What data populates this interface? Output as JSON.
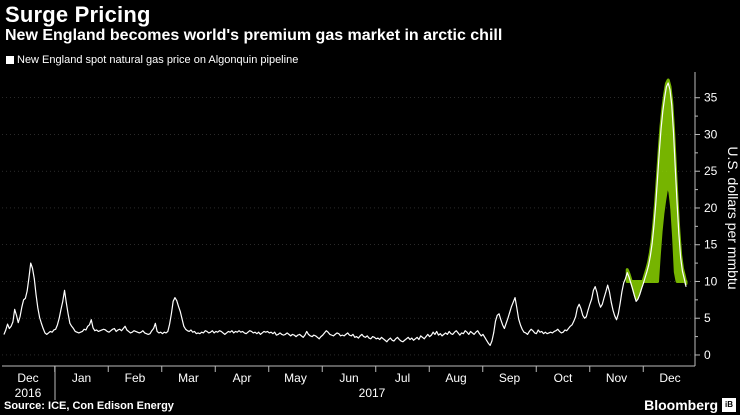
{
  "header": {
    "title": "Surge Pricing",
    "subtitle": "New England becomes world's premium gas market in arctic chill"
  },
  "legend": {
    "label": "New England spot natural gas price on Algonquin pipeline"
  },
  "footer": {
    "source": "Source: ICE, Con Edison Energy",
    "brand": "Bloomberg",
    "brand_mark": "iB"
  },
  "colors": {
    "background": "#000000",
    "line": "#ffffff",
    "highlight": "#8bd400",
    "grid": "#444444"
  },
  "chart_data": {
    "type": "line",
    "ylabel": "U.S. dollars per mmbtu",
    "ylim": [
      -1.5,
      38.5
    ],
    "yticks": [
      0,
      5,
      10,
      15,
      20,
      25,
      30,
      35
    ],
    "x_month_labels": [
      "Dec",
      "Jan",
      "Feb",
      "Mar",
      "Apr",
      "May",
      "Jun",
      "Jul",
      "Aug",
      "Sep",
      "Oct",
      "Nov",
      "Dec"
    ],
    "x_year_labels": [
      {
        "label": "2016",
        "month_index": 0
      },
      {
        "label": "2017",
        "month_index": 6
      }
    ],
    "series": [
      {
        "values": [
          2.8,
          3.4,
          4.2,
          3.6,
          3.9,
          4.5,
          6.2,
          5.4,
          4.4,
          5.2,
          6.5,
          7.5,
          7.7,
          8.7,
          10.5,
          12.5,
          11.8,
          10.4,
          8.2,
          6.4,
          5.1,
          4.3,
          3.6,
          3.0,
          2.8,
          3.0,
          3.2,
          3.1,
          3.4,
          3.5,
          4.1,
          5.0,
          6.2,
          7.3,
          8.8,
          7.1,
          5.6,
          4.3,
          3.9,
          3.6,
          3.2,
          3.1,
          3.0,
          3.1,
          3.2,
          3.5,
          3.4,
          3.9,
          4.1,
          4.8,
          3.7,
          3.3,
          3.4,
          3.2,
          3.3,
          3.4,
          3.5,
          3.4,
          3.2,
          3.1,
          3.3,
          3.5,
          3.6,
          3.2,
          3.4,
          3.5,
          3.3,
          3.6,
          3.9,
          3.4,
          3.2,
          3.0,
          3.1,
          3.3,
          3.2,
          3.1,
          3.0,
          3.1,
          3.3,
          3.0,
          2.9,
          2.8,
          2.9,
          3.3,
          3.6,
          4.3,
          3.2,
          3.0,
          3.1,
          2.9,
          3.1,
          3.0,
          3.2,
          4.2,
          5.6,
          7.3,
          7.8,
          7.4,
          6.6,
          5.9,
          4.9,
          3.9,
          3.5,
          3.3,
          3.2,
          3.4,
          3.1,
          3.2,
          2.9,
          3.0,
          2.9,
          3.1,
          3.0,
          3.3,
          3.2,
          3.0,
          3.1,
          3.3,
          3.0,
          3.2,
          3.1,
          3.3,
          3.2,
          3.0,
          2.8,
          3.0,
          3.2,
          3.1,
          3.3,
          3.0,
          3.2,
          3.1,
          3.3,
          3.1,
          3.2,
          3.0,
          2.9,
          3.1,
          3.3,
          3.2,
          3.0,
          3.1,
          2.9,
          3.1,
          2.8,
          3.0,
          3.2,
          3.1,
          3.2,
          3.0,
          3.1,
          2.9,
          3.1,
          2.7,
          2.8,
          3.0,
          2.8,
          2.7,
          2.8,
          3.0,
          2.8,
          2.6,
          2.8,
          2.7,
          2.5,
          2.7,
          2.8,
          2.6,
          2.4,
          2.7,
          3.2,
          2.8,
          2.6,
          2.5,
          2.7,
          2.6,
          2.4,
          2.2,
          2.5,
          2.7,
          3.0,
          3.3,
          3.1,
          2.8,
          2.7,
          2.6,
          2.8,
          3.0,
          2.9,
          2.6,
          2.7,
          2.6,
          2.8,
          3.0,
          2.7,
          2.6,
          2.8,
          2.4,
          2.5,
          2.3,
          2.6,
          2.8,
          2.5,
          2.4,
          2.6,
          2.3,
          2.2,
          2.5,
          2.4,
          2.2,
          2.3,
          2.1,
          2.4,
          2.2,
          2.0,
          1.8,
          2.1,
          2.3,
          2.0,
          1.9,
          2.2,
          2.4,
          2.1,
          1.9,
          1.8,
          2.0,
          2.2,
          2.4,
          2.1,
          2.3,
          2.0,
          2.2,
          2.4,
          2.1,
          2.6,
          2.4,
          2.2,
          2.5,
          2.8,
          2.5,
          2.7,
          3.1,
          2.8,
          3.2,
          2.7,
          2.9,
          2.6,
          2.8,
          3.0,
          2.8,
          3.2,
          2.9,
          2.8,
          3.1,
          3.3,
          3.0,
          2.7,
          3.0,
          2.9,
          3.3,
          3.1,
          2.8,
          3.2,
          3.0,
          2.8,
          3.1,
          3.3,
          2.9,
          2.6,
          2.8,
          2.4,
          2.0,
          1.6,
          1.3,
          1.9,
          3.0,
          4.6,
          5.4,
          5.6,
          4.8,
          4.1,
          3.6,
          4.3,
          5.0,
          5.8,
          6.6,
          7.2,
          7.8,
          6.4,
          4.9,
          4.1,
          3.5,
          3.1,
          3.0,
          2.8,
          3.2,
          3.5,
          3.3,
          3.0,
          2.9,
          3.4,
          3.1,
          3.2,
          2.9,
          3.1,
          2.9,
          3.0,
          3.1,
          3.0,
          3.2,
          3.3,
          3.5,
          3.2,
          3.0,
          3.1,
          3.4,
          3.3,
          3.6,
          3.9,
          4.1,
          4.6,
          5.2,
          6.4,
          6.9,
          6.3,
          5.4,
          5.0,
          5.2,
          6.1,
          6.9,
          7.6,
          8.8,
          9.3,
          8.5,
          7.2,
          6.5,
          6.9,
          7.8,
          8.6,
          9.5,
          8.6,
          7.2,
          6.1,
          5.3,
          4.8,
          5.6,
          7.0,
          8.6,
          9.8,
          10.4,
          11.2,
          10.6,
          9.8,
          9.0,
          8.1,
          7.3,
          7.6,
          8.2,
          9.0,
          9.7,
          10.5,
          11.3,
          12.2,
          13.5,
          15.2,
          17.6,
          20.5,
          24.0,
          27.6,
          30.8,
          33.2,
          35.0,
          36.5,
          37.0,
          36.1,
          34.0,
          30.2,
          25.3,
          20.6,
          16.4,
          13.2,
          11.4,
          10.4,
          9.3
        ]
      }
    ]
  }
}
